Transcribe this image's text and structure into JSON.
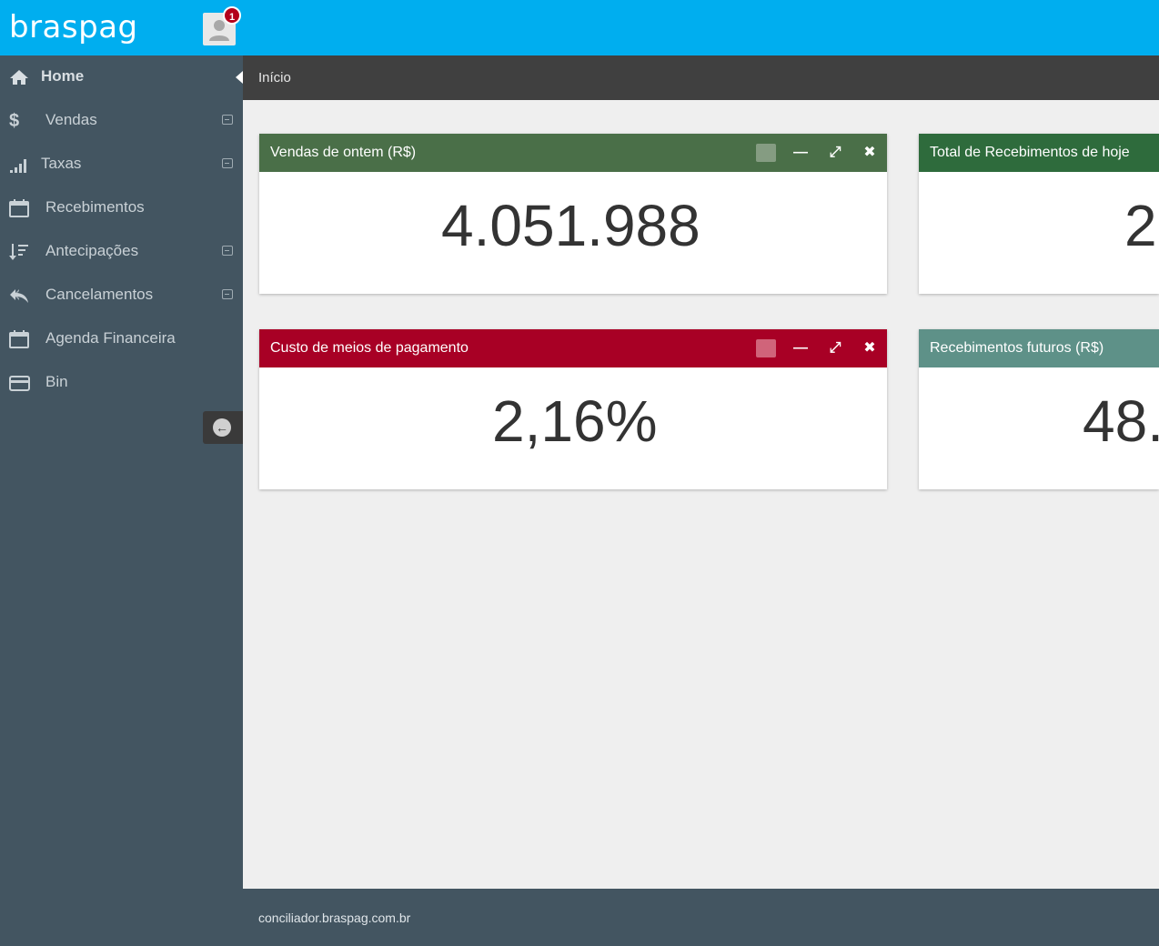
{
  "header": {
    "logo": "braspag",
    "notification_count": "1",
    "bg_color": "#00aeef"
  },
  "sidebar": {
    "items": [
      {
        "label": "Home",
        "icon": "home-icon",
        "expandable": false,
        "active": true
      },
      {
        "label": "Vendas",
        "icon": "dollar-icon",
        "expandable": true
      },
      {
        "label": "Taxas",
        "icon": "signal-bars-icon",
        "expandable": true
      },
      {
        "label": "Recebimentos",
        "icon": "calendar-icon",
        "expandable": false
      },
      {
        "label": "Antecipações",
        "icon": "sort-list-icon",
        "expandable": true
      },
      {
        "label": "Cancelamentos",
        "icon": "reply-all-icon",
        "expandable": true
      },
      {
        "label": "Agenda Financeira",
        "icon": "calendar-icon",
        "expandable": false
      },
      {
        "label": "Bin",
        "icon": "credit-card-icon",
        "expandable": false
      }
    ]
  },
  "breadcrumb": {
    "label": "Início"
  },
  "widgets": [
    {
      "title": "Vendas de ontem (R$)",
      "value": "4.051.988",
      "color": "#4a6f48"
    },
    {
      "title": "Total de Recebimentos de hoje",
      "value": "2",
      "color": "#2e6b3c"
    },
    {
      "title": "Custo de meios de pagamento",
      "value": "2,16%",
      "color": "#a80025"
    },
    {
      "title": "Recebimentos futuros (R$)",
      "value": "48.",
      "color": "#5e9188"
    }
  ],
  "footer": {
    "text": "conciliador.braspag.com.br"
  }
}
